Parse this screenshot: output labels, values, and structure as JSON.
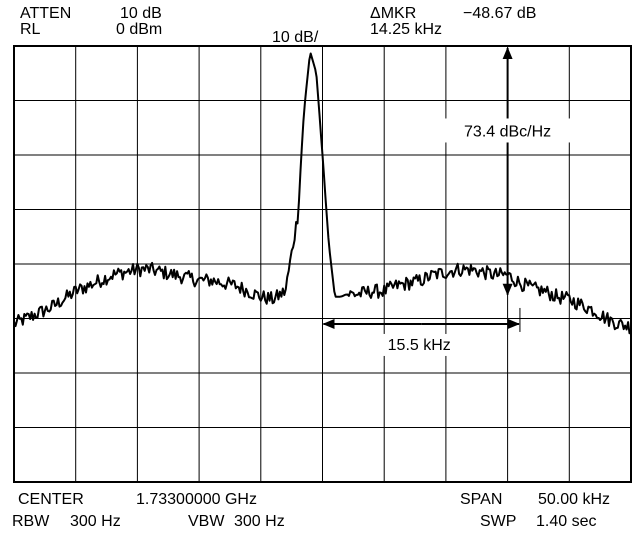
{
  "header": {
    "atten_label": "ATTEN",
    "atten_value": "10 dB",
    "rl_label": "RL",
    "rl_value": "0 dBm",
    "scale": "10 dB/",
    "dmkr_label": "ΔMKR",
    "dmkr_value": "−48.67 dB",
    "dmkr_freq": "14.25 kHz"
  },
  "footer": {
    "center_label": "CENTER",
    "center_value": "1.73300000 GHz",
    "span_label": "SPAN",
    "span_value": "50.00 kHz",
    "rbw_label": "RBW",
    "rbw_value": "300 Hz",
    "vbw_label": "VBW",
    "vbw_value": "300 Hz",
    "swp_label": "SWP",
    "swp_value": "1.40 sec"
  },
  "chart_data": {
    "type": "line",
    "x_unit": "kHz offset from center",
    "y_unit": "dB below reference level",
    "xlim": [
      -25,
      25
    ],
    "ylim": [
      -80,
      0
    ],
    "grid": true,
    "grid_divisions": {
      "x": 10,
      "y": 8
    },
    "series": [
      {
        "x": [
          -25,
          -24,
          -23,
          -22,
          -21,
          -20,
          -19,
          -18,
          -17,
          -16,
          -15,
          -14,
          -13,
          -12,
          -11,
          -10,
          -9,
          -8,
          -7,
          -6,
          -5,
          -4,
          -3,
          -2,
          -1.5,
          -1,
          -0.5,
          0,
          0.5,
          1,
          1.5,
          2,
          3,
          4,
          5,
          6,
          7,
          8,
          9,
          10,
          11,
          12,
          13,
          14,
          15,
          16,
          17,
          18,
          19,
          20,
          21,
          22,
          23,
          24,
          25
        ],
        "y": [
          -51,
          -50,
          -49,
          -48,
          -46.5,
          -45,
          -44,
          -43,
          -42,
          -41.5,
          -41,
          -41,
          -41.5,
          -42,
          -42.5,
          -43,
          -43,
          -43.5,
          -44,
          -45,
          -46,
          -46.5,
          -45,
          -31,
          -12,
          -1,
          -5,
          -20,
          -36,
          -46,
          -46,
          -45.5,
          -45.5,
          -45,
          -45,
          -44,
          -43.5,
          -43,
          -42,
          -41.5,
          -41,
          -41,
          -41.5,
          -42,
          -42,
          -43.5,
          -44.5,
          -45,
          -46,
          -46.5,
          -47.5,
          -48.5,
          -50,
          -51,
          -51.5
        ]
      }
    ],
    "annotations": [
      {
        "text": "73.4 dBc/Hz",
        "marker": "vertical-arrow",
        "x": 15,
        "y_from": 0,
        "y_to": -46
      },
      {
        "text": "15.5 kHz",
        "marker": "horizontal-arrow",
        "y": -51,
        "x_from": 0,
        "x_to": 16
      }
    ]
  }
}
